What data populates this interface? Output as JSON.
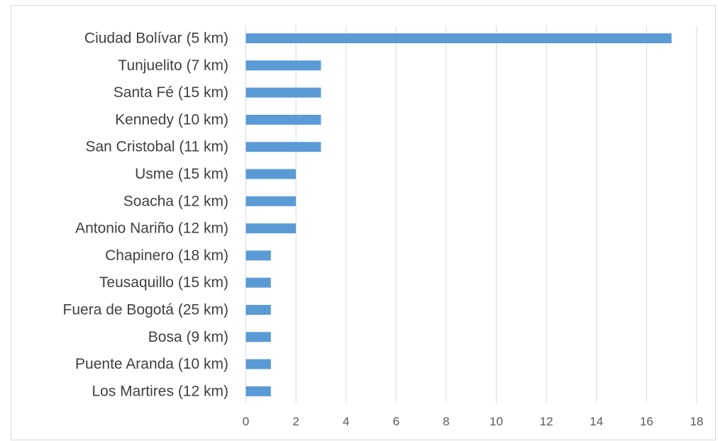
{
  "chart_data": {
    "type": "bar",
    "orientation": "horizontal",
    "categories": [
      "Ciudad Bolívar (5 km)",
      "Tunjuelito (7 km)",
      "Santa Fé (15 km)",
      "Kennedy (10 km)",
      "San Cristobal (11 km)",
      "Usme (15 km)",
      "Soacha (12 km)",
      "Antonio Nariño (12 km)",
      "Chapinero (18 km)",
      "Teusaquillo (15 km)",
      "Fuera de Bogotá (25 km)",
      "Bosa (9 km)",
      "Puente Aranda (10 km)",
      "Los Martires (12 km)"
    ],
    "values": [
      17,
      3,
      3,
      3,
      3,
      2,
      2,
      2,
      1,
      1,
      1,
      1,
      1,
      1
    ],
    "xticks": [
      "0",
      "2",
      "4",
      "6",
      "8",
      "10",
      "12",
      "14",
      "16",
      "18"
    ],
    "xlim": [
      0,
      18
    ],
    "grid": "vertical",
    "legend": "none",
    "bar_color": "#5b9bd5",
    "grid_color": "#d9d9d9"
  }
}
